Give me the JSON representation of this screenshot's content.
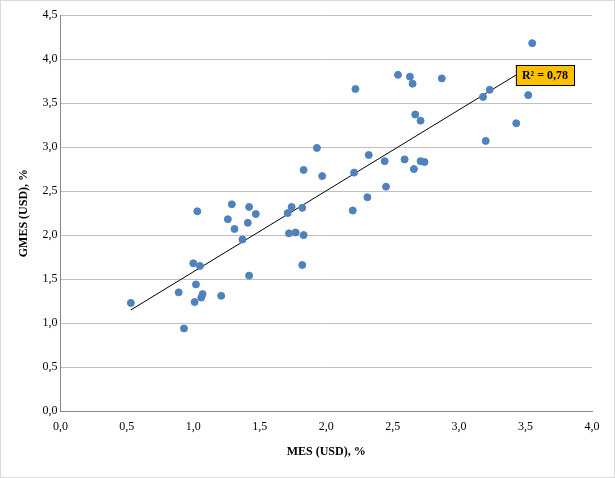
{
  "chart_data": {
    "type": "scatter",
    "x_label": "MES (USD), %",
    "y_label": "GMES (USD), %",
    "color": "#4f81bd",
    "marker": "circle",
    "grid": "y",
    "x": [
      0.53,
      0.89,
      0.93,
      1.0,
      1.01,
      1.02,
      1.03,
      1.05,
      1.06,
      1.07,
      1.21,
      1.26,
      1.29,
      1.31,
      1.37,
      1.41,
      1.42,
      1.42,
      1.47,
      1.71,
      1.72,
      1.74,
      1.77,
      1.82,
      1.82,
      1.83,
      1.83,
      1.93,
      1.97,
      2.2,
      2.21,
      2.22,
      2.31,
      2.32,
      2.44,
      2.45,
      2.54,
      2.59,
      2.63,
      2.65,
      2.66,
      2.67,
      2.71,
      2.71,
      2.74,
      2.87,
      3.18,
      3.2,
      3.23,
      3.43,
      3.52,
      3.55
    ],
    "values": [
      1.23,
      1.35,
      0.94,
      1.68,
      1.24,
      1.44,
      2.27,
      1.65,
      1.29,
      1.33,
      1.31,
      2.18,
      2.35,
      2.07,
      1.95,
      2.14,
      2.32,
      1.54,
      2.24,
      2.25,
      2.02,
      2.32,
      2.03,
      2.31,
      1.66,
      2.74,
      2.0,
      2.99,
      2.67,
      2.28,
      2.71,
      3.66,
      2.43,
      2.91,
      2.84,
      2.55,
      3.82,
      2.86,
      3.8,
      3.72,
      2.75,
      3.37,
      3.3,
      2.84,
      2.83,
      3.78,
      3.57,
      3.07,
      3.65,
      3.27,
      3.59,
      4.18
    ],
    "trendline": {
      "x": [
        0.53,
        3.55
      ],
      "values": [
        1.15,
        3.93
      ],
      "color": "#000000",
      "line_style": "solid"
    },
    "annotations": [
      {
        "text": "R² = 0,78"
      }
    ],
    "xlim": [
      0,
      4
    ],
    "xticks": [
      {
        "value": 0,
        "label": "0,0"
      },
      {
        "value": 0.5,
        "label": "0,5"
      },
      {
        "value": 1,
        "label": "1,0"
      },
      {
        "value": 1.5,
        "label": "1,5"
      },
      {
        "value": 2,
        "label": "2,0"
      },
      {
        "value": 2.5,
        "label": "2,5"
      },
      {
        "value": 3,
        "label": "3,0"
      },
      {
        "value": 3.5,
        "label": "3,5"
      },
      {
        "value": 4,
        "label": "4,0"
      }
    ],
    "ylim": [
      0,
      4.5
    ],
    "yticks": [
      {
        "value": 0,
        "label": "0,0"
      },
      {
        "value": 0.5,
        "label": "0,5"
      },
      {
        "value": 1,
        "label": "1,0"
      },
      {
        "value": 1.5,
        "label": "1,5"
      },
      {
        "value": 2,
        "label": "2,0"
      },
      {
        "value": 2.5,
        "label": "2,5"
      },
      {
        "value": 3,
        "label": "3,0"
      },
      {
        "value": 3.5,
        "label": "3,5"
      },
      {
        "value": 4,
        "label": "4,0"
      },
      {
        "value": 4.5,
        "label": "4,5"
      }
    ]
  }
}
